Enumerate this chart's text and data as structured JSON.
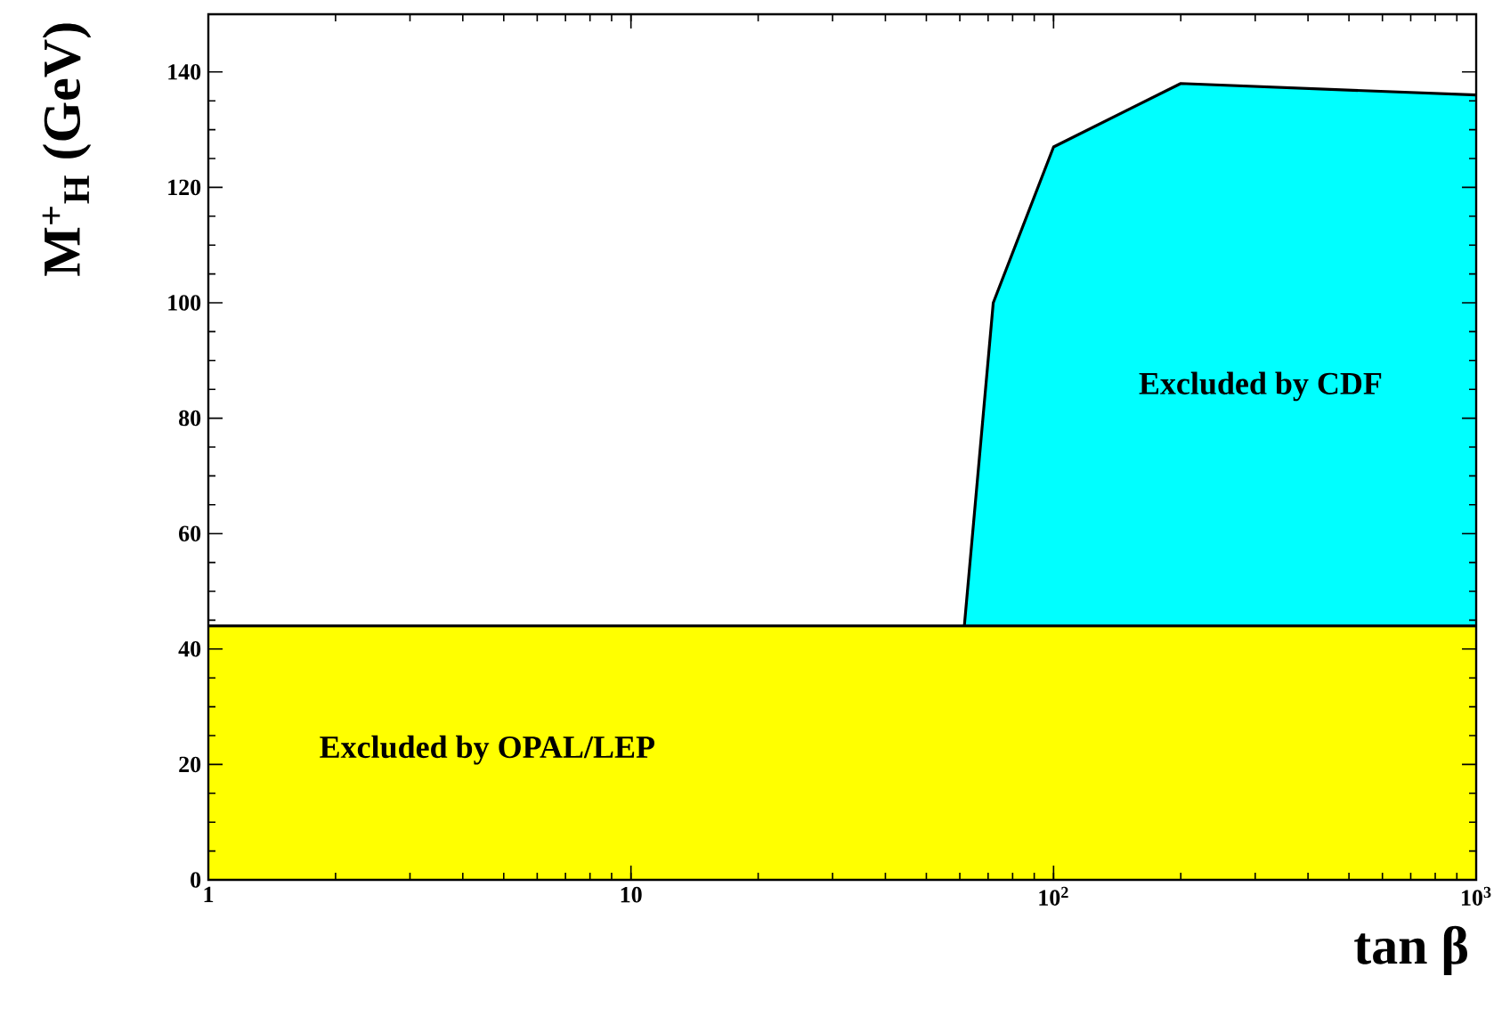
{
  "chart_data": {
    "type": "area",
    "xlabel": "tan β",
    "ylabel": "M$^{+}$$_{H}$ (GeV)",
    "log": "x",
    "xlim": [
      1,
      1000
    ],
    "ylim": [
      0,
      150
    ],
    "xticks": [
      1,
      10,
      {
        "value": 100,
        "label": "10$^{2}$"
      },
      {
        "value": 1000,
        "label": "10$^{3}$"
      }
    ],
    "yticks": [
      0,
      20,
      40,
      60,
      80,
      100,
      120,
      140
    ],
    "series": [
      {
        "color": "#00ffff",
        "x": [
          61.5,
          72,
          100,
          200,
          1000
        ],
        "values": [
          44,
          100,
          127,
          138,
          136
        ]
      },
      {
        "color": "#ffff00",
        "x": [
          1,
          1000
        ],
        "values": [
          44,
          44
        ]
      }
    ],
    "annotations": [
      "Excluded by CDF",
      "Excluded by OPAL/LEP"
    ]
  }
}
